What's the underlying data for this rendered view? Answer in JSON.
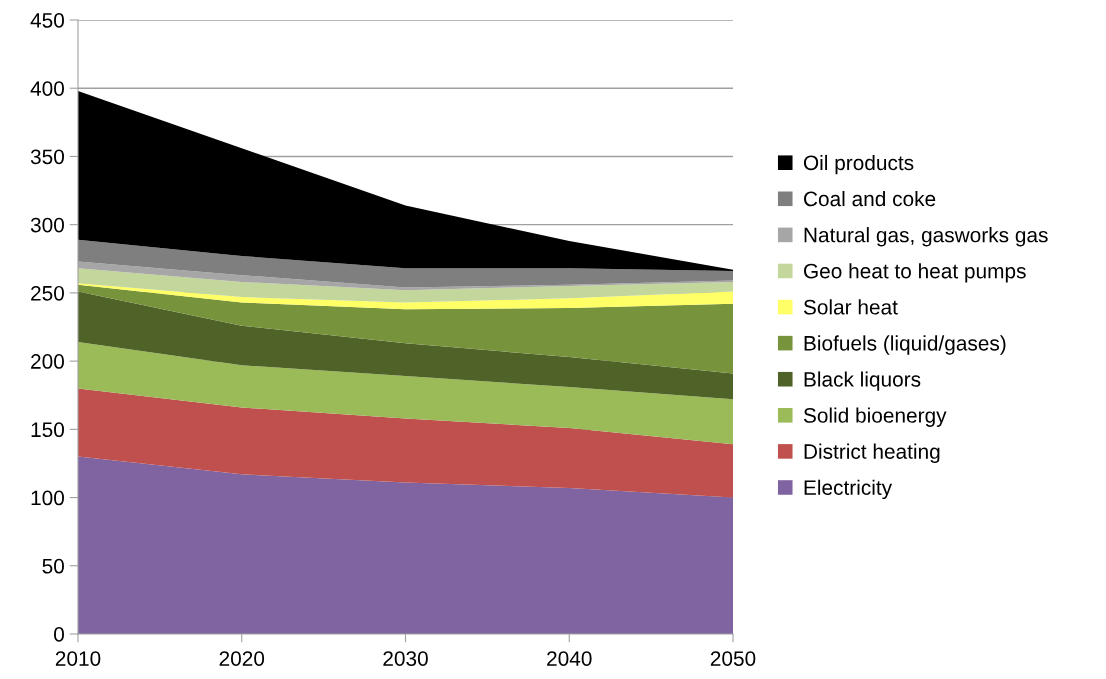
{
  "chart_data": {
    "type": "area",
    "stacked": true,
    "x": [
      2010,
      2020,
      2030,
      2040,
      2050
    ],
    "series": [
      {
        "name": "Electricity",
        "color": "#8064a2",
        "values": [
          130,
          117,
          111,
          107,
          100
        ]
      },
      {
        "name": "District heating",
        "color": "#c0504d",
        "values": [
          50,
          49,
          47,
          44,
          39
        ]
      },
      {
        "name": "Solid bioenergy",
        "color": "#9bbb59",
        "values": [
          34,
          31,
          31,
          30,
          33
        ]
      },
      {
        "name": "Black liquors",
        "color": "#4f6228",
        "values": [
          37,
          29,
          24,
          22,
          19
        ]
      },
      {
        "name": "Biofuels (liquid/gases)",
        "color": "#77933c",
        "values": [
          5,
          17,
          25,
          36,
          51
        ]
      },
      {
        "name": "Solar heat",
        "color": "#ffff66",
        "values": [
          1,
          4,
          5,
          7,
          9
        ]
      },
      {
        "name": "Geo heat to heat pumps",
        "color": "#c3d69b",
        "values": [
          11,
          11,
          9,
          9,
          7
        ]
      },
      {
        "name": "Natural gas, gasworks gas",
        "color": "#a6a6a6",
        "values": [
          5,
          5,
          2,
          1,
          1
        ]
      },
      {
        "name": "Coal and coke",
        "color": "#7f7f7f",
        "values": [
          16,
          14,
          14,
          12,
          7
        ]
      },
      {
        "name": "Oil products",
        "color": "#000000",
        "values": [
          109,
          79,
          46,
          20,
          1
        ]
      }
    ],
    "xlim": [
      2010,
      2050
    ],
    "xticks": [
      2010,
      2020,
      2030,
      2040,
      2050
    ],
    "ylim": [
      0,
      450
    ],
    "yticks": [
      0,
      50,
      100,
      150,
      200,
      250,
      300,
      350,
      400,
      450
    ],
    "grid": "y",
    "legend": "right"
  }
}
